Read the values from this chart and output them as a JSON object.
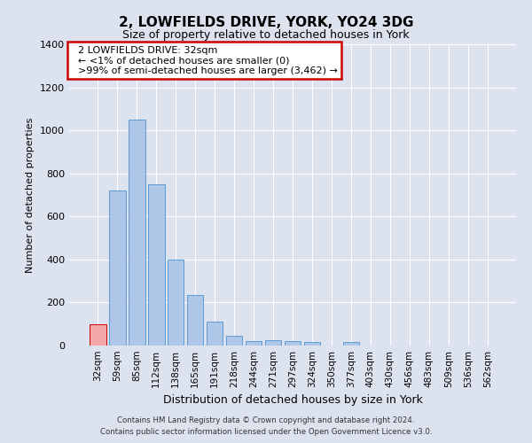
{
  "title": "2, LOWFIELDS DRIVE, YORK, YO24 3DG",
  "subtitle": "Size of property relative to detached houses in York",
  "xlabel": "Distribution of detached houses by size in York",
  "ylabel": "Number of detached properties",
  "categories": [
    "32sqm",
    "59sqm",
    "85sqm",
    "112sqm",
    "138sqm",
    "165sqm",
    "191sqm",
    "218sqm",
    "244sqm",
    "271sqm",
    "297sqm",
    "324sqm",
    "350sqm",
    "377sqm",
    "403sqm",
    "430sqm",
    "456sqm",
    "483sqm",
    "509sqm",
    "536sqm",
    "562sqm"
  ],
  "values": [
    100,
    720,
    1050,
    750,
    400,
    235,
    110,
    45,
    20,
    25,
    20,
    15,
    0,
    15,
    0,
    0,
    0,
    0,
    0,
    0,
    0
  ],
  "highlight_index": 0,
  "bar_color": "#aec6e8",
  "bar_edge_color": "#5b9bd5",
  "highlight_bar_color": "#f4a7a7",
  "highlight_bar_edge_color": "#cc0000",
  "background_color": "#dce3ef",
  "plot_bg_color": "#dce3ef",
  "grid_color": "#ffffff",
  "ylim": [
    0,
    1400
  ],
  "yticks": [
    0,
    200,
    400,
    600,
    800,
    1000,
    1200,
    1400
  ],
  "annotation_box_text": "  2 LOWFIELDS DRIVE: 32sqm\n  ← <1% of detached houses are smaller (0)\n  >99% of semi-detached houses are larger (3,462) →",
  "annotation_box_color": "#ffffff",
  "annotation_box_edge_color": "#cc0000",
  "footer_line1": "Contains HM Land Registry data © Crown copyright and database right 2024.",
  "footer_line2": "Contains public sector information licensed under the Open Government Licence v3.0.",
  "title_fontsize": 11,
  "subtitle_fontsize": 9,
  "ylabel_fontsize": 8,
  "xlabel_fontsize": 9,
  "tick_fontsize": 8,
  "xtick_fontsize": 7.5
}
